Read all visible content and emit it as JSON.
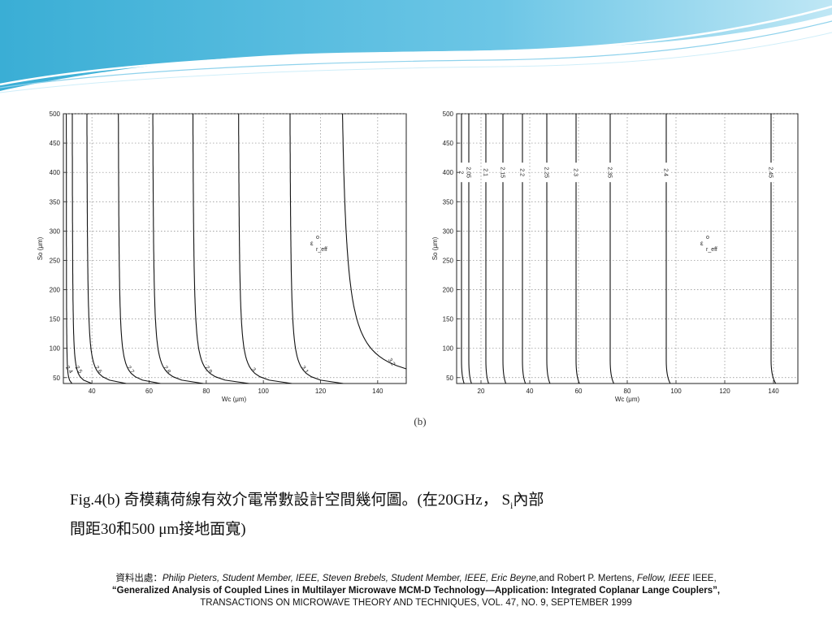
{
  "colors": {
    "wave_dark": "#2aa5cf",
    "wave_light": "#a9dcef",
    "ink": "#111111"
  },
  "figure": {
    "letter": "(b)",
    "left_plot": {
      "xlabel": "Wc (μm)",
      "ylabel": "So (μm)",
      "annotation": "εr_eff",
      "annotation_base": "ε",
      "annotation_sup": "o",
      "annotation_sub": "r_eff"
    },
    "right_plot": {
      "xlabel": "Wc (μm)",
      "ylabel": "So (μm)",
      "annotation": "εr_eff",
      "annotation_base": "ε",
      "annotation_sup": "o",
      "annotation_sub": "r_eff"
    }
  },
  "chart_data": [
    {
      "type": "line",
      "subtype": "contour",
      "title": "",
      "xlabel": "Wc (μm)",
      "ylabel": "So (μm)",
      "xlim": [
        30,
        150
      ],
      "ylim": [
        40,
        500
      ],
      "xticks": [
        40,
        60,
        80,
        100,
        120,
        140
      ],
      "yticks": [
        50,
        100,
        150,
        200,
        250,
        300,
        350,
        400,
        450,
        500
      ],
      "grid": true,
      "annotation": "εr_eff",
      "series": [
        {
          "name": "2.4",
          "asymptote_x": 31,
          "end": [
            33,
            40
          ]
        },
        {
          "name": "2.5",
          "asymptote_x": 33,
          "end": [
            40,
            40
          ]
        },
        {
          "name": "2.6",
          "asymptote_x": 38,
          "end": [
            52,
            40
          ]
        },
        {
          "name": "2.7",
          "asymptote_x": 49,
          "end": [
            64,
            40
          ]
        },
        {
          "name": "2.8",
          "asymptote_x": 61,
          "end": [
            79,
            40
          ]
        },
        {
          "name": "2.9",
          "asymptote_x": 75,
          "end": [
            95,
            40
          ]
        },
        {
          "name": "3",
          "asymptote_x": 91,
          "end": [
            110,
            40
          ]
        },
        {
          "name": "3.1",
          "asymptote_x": 109,
          "end": [
            128,
            40
          ]
        },
        {
          "name": "3.2",
          "asymptote_x": 126,
          "end": [
            150,
            65
          ]
        }
      ]
    },
    {
      "type": "line",
      "subtype": "contour",
      "title": "",
      "xlabel": "Wc (μm)",
      "ylabel": "So (μm)",
      "xlim": [
        10,
        150
      ],
      "ylim": [
        40,
        500
      ],
      "xticks": [
        20,
        40,
        60,
        80,
        100,
        120,
        140
      ],
      "yticks": [
        50,
        100,
        150,
        200,
        250,
        300,
        350,
        400,
        450,
        500
      ],
      "grid": true,
      "annotation": "εr_eff",
      "series": [
        {
          "name": "2",
          "x": 12
        },
        {
          "name": "2.05",
          "x": 15
        },
        {
          "name": "2.1",
          "x": 22
        },
        {
          "name": "2.15",
          "x": 29
        },
        {
          "name": "2.2",
          "x": 37
        },
        {
          "name": "2.25",
          "x": 47
        },
        {
          "name": "2.3",
          "x": 59
        },
        {
          "name": "2.35",
          "x": 73
        },
        {
          "name": "2.4",
          "x": 96
        },
        {
          "name": "2.45",
          "x": 139
        }
      ]
    }
  ],
  "caption": {
    "line1_prefix": "Fig.4(b) 奇模藕荷線有效介電常數設計空間幾何圖。(在20GHz， S",
    "line1_sub": "i",
    "line1_suffix": "內部",
    "line2": "間距30和500 μm接地面寬)"
  },
  "reference": {
    "label": "資料出處：",
    "authors_italic": "Philip Pieters, Student Member, IEEE, Steven Brebels, Student Member, IEEE, Eric Beyne,",
    "authors_plain": "and Robert P. Mertens, ",
    "fellow_italic": "Fellow, IEEE",
    "ieee": " IEEE,",
    "title_bold": "“Generalized Analysis of Coupled Lines in Multilayer Microwave MCM-D Technology—Application: Integrated Coplanar Lange Couplers”,",
    "journal": "TRANSACTIONS ON MICROWAVE THEORY AND TECHNIQUES, VOL. 47, NO. 9, SEPTEMBER 1999"
  }
}
